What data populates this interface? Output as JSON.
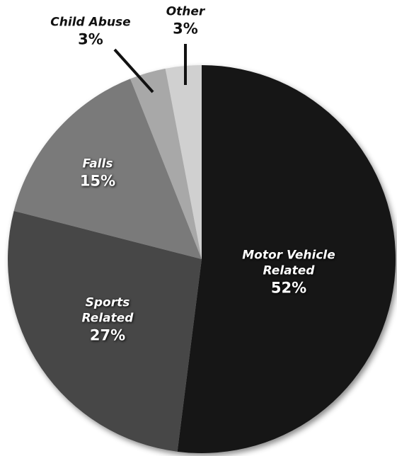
{
  "chart_data": {
    "type": "pie",
    "categories": [
      "Motor Vehicle Related",
      "Sports Related",
      "Falls",
      "Child Abuse",
      "Other"
    ],
    "values": [
      52,
      27,
      15,
      3,
      3
    ],
    "value_labels": [
      "52%",
      "27%",
      "15%",
      "3%",
      "3%"
    ],
    "colors": [
      "#141414",
      "#474747",
      "#7a7a7a",
      "#a8a8a8",
      "#d0d0d0"
    ]
  }
}
